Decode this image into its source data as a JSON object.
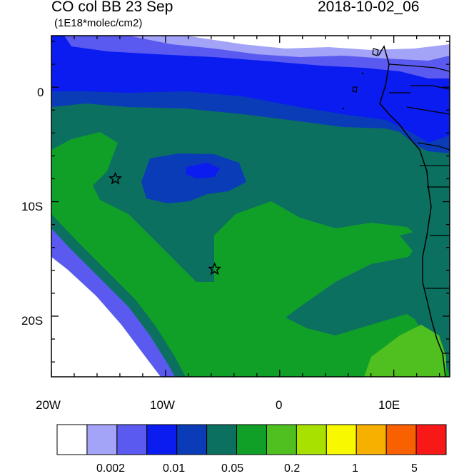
{
  "header": {
    "title": "CO col BB 23 Sep",
    "units": "(1E18*molec/cm2)",
    "datetime": "2018-10-02_06"
  },
  "map": {
    "region": "Southeastern Atlantic / southwest Africa",
    "lon_ticks": [
      "20W",
      "10W",
      "0",
      "10E"
    ],
    "lat_ticks": [
      "0",
      "10S",
      "20S"
    ],
    "markers": [
      {
        "name": "star-marker",
        "lon": -14.4,
        "lat": -8.0
      },
      {
        "name": "star-marker",
        "lon": -5.7,
        "lat": -15.9
      }
    ],
    "field_classes": [
      "white",
      "lavender",
      "light-blue",
      "blue",
      "dark-blue",
      "teal",
      "green",
      "yellow-green"
    ]
  },
  "colorbar": {
    "colors": [
      "#ffffff",
      "#a3a3f7",
      "#5a5af0",
      "#0a1cf0",
      "#0a3cb8",
      "#0b7060",
      "#10a028",
      "#50c020",
      "#a8e000",
      "#f8f800",
      "#f8b000",
      "#f86000",
      "#f81818"
    ],
    "labels": [
      "0.002",
      "0.01",
      "0.05",
      "0.2",
      "1",
      "5"
    ]
  }
}
